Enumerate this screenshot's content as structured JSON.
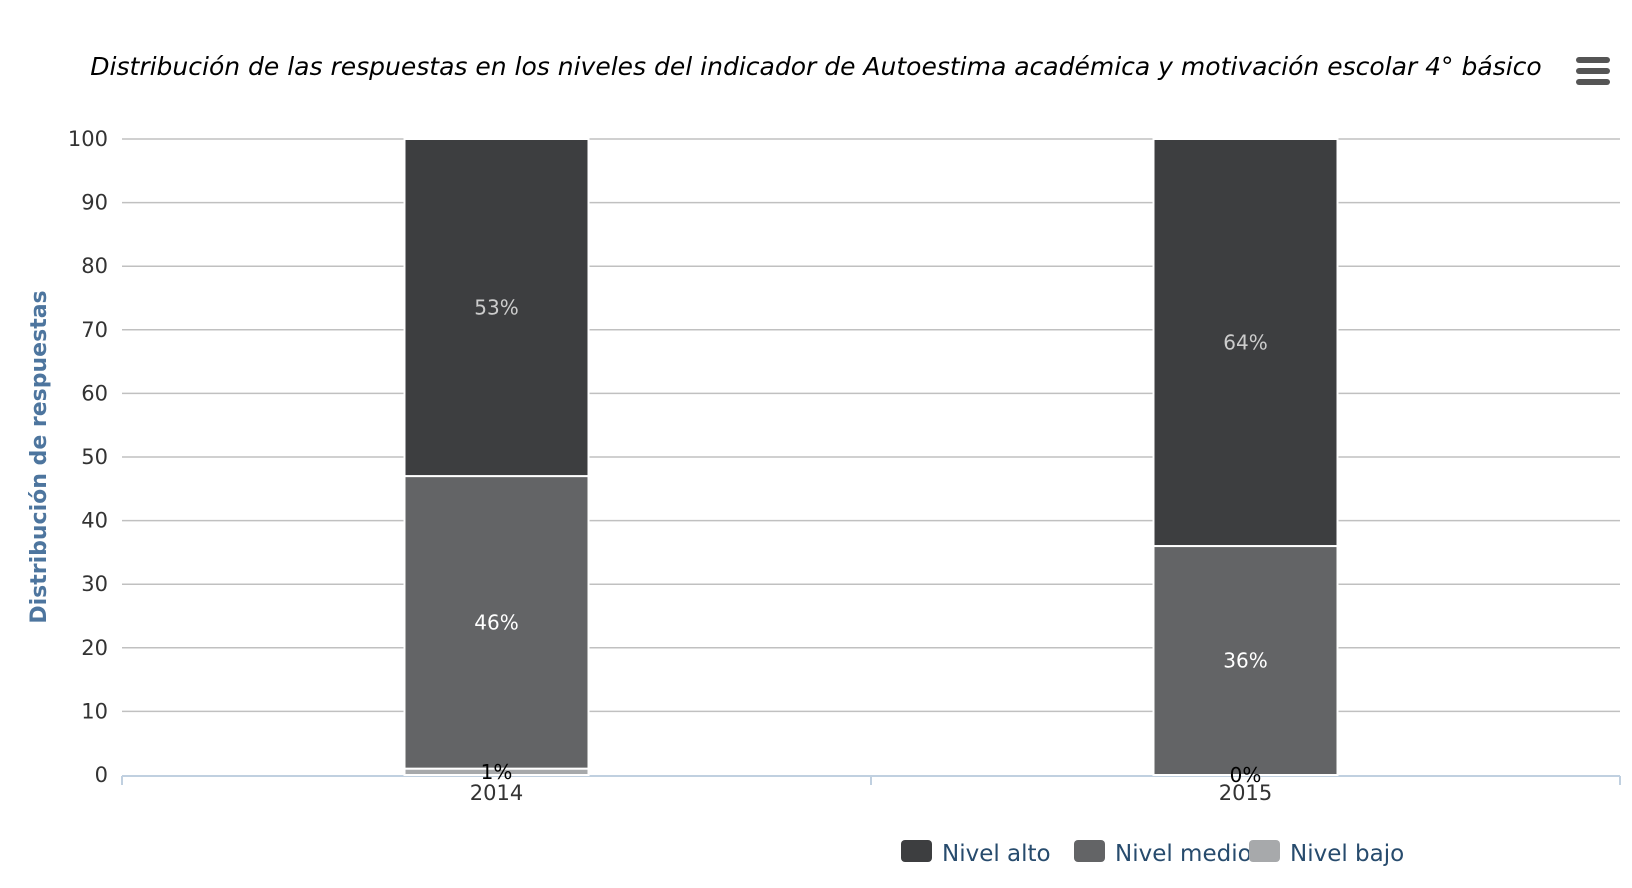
{
  "chart_data": {
    "type": "bar",
    "stacked": true,
    "title": "Distribución de las respuestas en los niveles del indicador de Autoestima académica y motivación escolar 4° básico",
    "xlabel": "",
    "ylabel": "Distribución de respuestas",
    "categories": [
      "2014",
      "2015"
    ],
    "ylim": [
      0,
      100
    ],
    "yticks": [
      0,
      10,
      20,
      30,
      40,
      50,
      60,
      70,
      80,
      90,
      100
    ],
    "grid": true,
    "legend_position": "bottom-right",
    "value_suffix": "%",
    "series": [
      {
        "name": "Nivel alto",
        "values": [
          53,
          64
        ],
        "color": "#3d3e40",
        "label_color": "#cccccc"
      },
      {
        "name": "Nivel medio",
        "values": [
          46,
          36
        ],
        "color": "#636466",
        "label_color": "#ffffff"
      },
      {
        "name": "Nivel bajo",
        "values": [
          1,
          0
        ],
        "color": "#a7a9ab",
        "label_color": "#000000"
      }
    ]
  },
  "ui": {
    "menu_icon": "hamburger-menu-icon"
  }
}
